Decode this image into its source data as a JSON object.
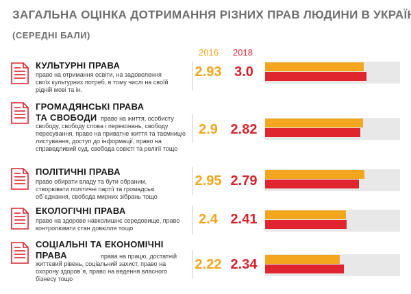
{
  "title": "ЗАГАЛЬНА ОЦІНКА ДОТРИМАННЯ РІЗНИХ ПРАВ ЛЮДИНИ В УКРАЇНІ",
  "subtitle": "(СЕРЕДНІ БАЛИ)",
  "colors": {
    "y2016": "#f2a51c",
    "y2018": "#e0242e",
    "track": "#e8e8e8"
  },
  "chart_data": {
    "type": "bar",
    "title": "ЗАГАЛЬНА ОЦІНКА ДОТРИМАННЯ РІЗНИХ ПРАВ ЛЮДИНИ В УКРАЇНІ",
    "subtitle": "(СЕРЕДНІ БАЛИ)",
    "xlim": [
      0,
      4
    ],
    "legend": [
      "2016",
      "2018"
    ],
    "categories": [
      {
        "title_lines": [
          "КУЛЬТУРНІ ПРАВА"
        ],
        "description": "право на отримання освіти, на задоволення своїх культурних потреб, в тому числі на своїй рідній мові та ін.",
        "v2016": 2.93,
        "v2018": 3.0,
        "label2016": "2.93",
        "label2018": "3.0"
      },
      {
        "title_lines": [
          "ГРОМАДЯНСЬКІ ПРАВА",
          "ТА СВОБОДИ"
        ],
        "description": "право на життя, особисту свободу, свободу слова і переконань, свободу пересування, право на приватне життя та таємницю листування, доступ до інформації, право на справедливий суд, свобода совісті та релігії тощо",
        "v2016": 2.9,
        "v2018": 2.82,
        "label2016": "2.9",
        "label2018": "2.82"
      },
      {
        "title_lines": [
          "ПОЛІТИЧНІ ПРАВА"
        ],
        "description": "право обирати владу та бути обраним, створювати політичні партії та громадські об`єднання, свобода мирних зібрань тощо",
        "v2016": 2.95,
        "v2018": 2.79,
        "label2016": "2.95",
        "label2018": "2.79"
      },
      {
        "title_lines": [
          "ЕКОЛОГІЧНІ ПРАВА"
        ],
        "description": "право на здорове навколишнє середовище, право контролювати стан довкілля тощо",
        "v2016": 2.4,
        "v2018": 2.41,
        "label2016": "2.4",
        "label2018": "2.41"
      },
      {
        "title_lines": [
          "СОЦІАЛЬНІ ТА ЕКОНОМІЧНІ",
          "ПРАВА"
        ],
        "description": "права на працю, достатній життєвий рівень, соціальний захист, право на охорону здоров`я, право на ведення власного бізнесу тощо",
        "v2016": 2.22,
        "v2018": 2.34,
        "label2016": "2.22",
        "label2018": "2.34"
      }
    ]
  }
}
